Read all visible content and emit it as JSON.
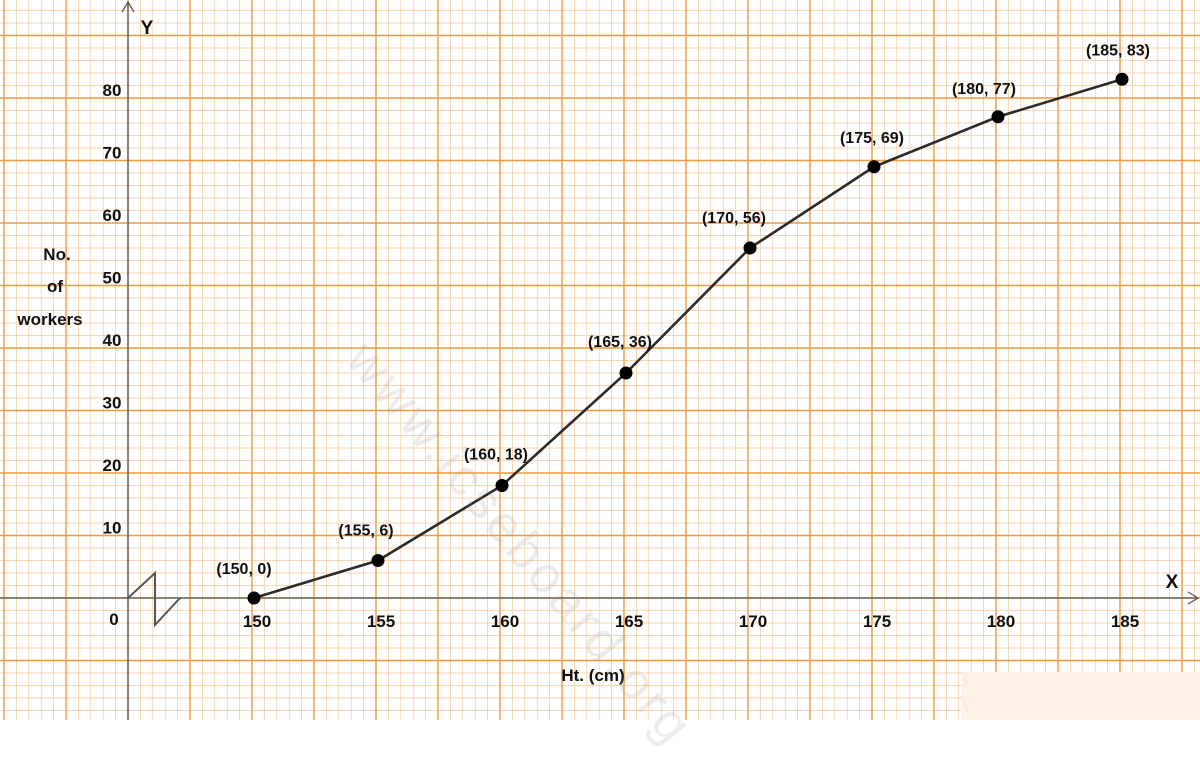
{
  "chart_data": {
    "type": "line",
    "xlabel": "Ht. (cm)",
    "ylabel_lines": [
      "No.",
      "of",
      "workers"
    ],
    "x_axis_letter": "X",
    "y_axis_letter": "Y",
    "origin_label": "0",
    "x": [
      150,
      155,
      160,
      165,
      170,
      175,
      180,
      185
    ],
    "y": [
      0,
      6,
      18,
      36,
      56,
      69,
      77,
      83
    ],
    "point_labels": [
      "(150, 0)",
      "(155, 6)",
      "(160, 18)",
      "(165, 36)",
      "(170, 56)",
      "(175, 69)",
      "(180, 77)",
      "(185, 83)"
    ],
    "x_ticks": [
      "150",
      "155",
      "160",
      "165",
      "170",
      "175",
      "180",
      "185"
    ],
    "y_ticks": [
      "10",
      "20",
      "30",
      "40",
      "50",
      "60",
      "70",
      "80"
    ],
    "xlim": [
      145,
      188
    ],
    "ylim": [
      -19,
      95
    ],
    "axis_break": "x",
    "grid": true,
    "colors": {
      "minor_grid": "#f7c89a",
      "major_grid": "#ee9a3f",
      "line": "#2b2b2b",
      "point": "#000000",
      "axis": "#555555"
    }
  },
  "watermark": "www.icseboard.org"
}
